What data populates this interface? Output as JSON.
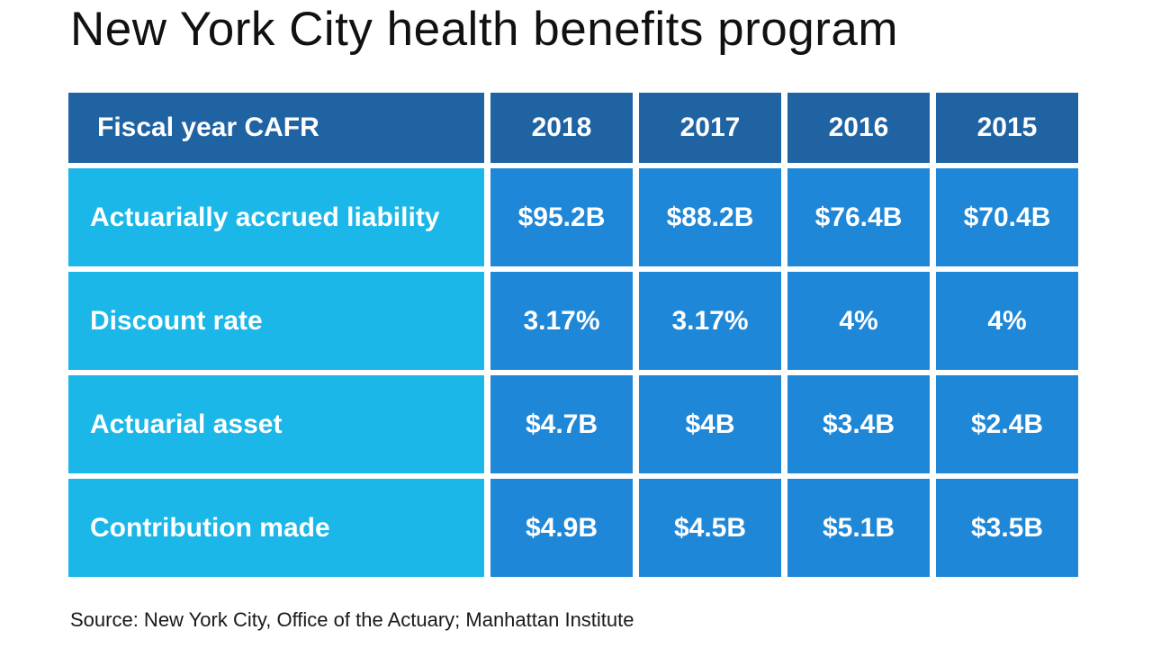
{
  "title": "New York City health benefits program",
  "source": "Source: New York City, Office of the Actuary; Manhattan Institute",
  "colors": {
    "header": "#1f63a3",
    "label_cell": "#1ab7e8",
    "value_cell": "#1e87d7"
  },
  "chart_data": {
    "type": "table",
    "title": "New York City health benefits program",
    "columns": [
      "Fiscal year CAFR",
      "2018",
      "2017",
      "2016",
      "2015"
    ],
    "rows": [
      {
        "label": "Actuarially accrued liability",
        "values": [
          "$95.2B",
          "$88.2B",
          "$76.4B",
          "$70.4B"
        ]
      },
      {
        "label": "Discount rate",
        "values": [
          "3.17%",
          "3.17%",
          "4%",
          "4%"
        ]
      },
      {
        "label": "Actuarial asset",
        "values": [
          "$4.7B",
          "$4B",
          "$3.4B",
          "$2.4B"
        ]
      },
      {
        "label": "Contribution made",
        "values": [
          "$4.9B",
          "$4.5B",
          "$5.1B",
          "$3.5B"
        ]
      }
    ]
  }
}
